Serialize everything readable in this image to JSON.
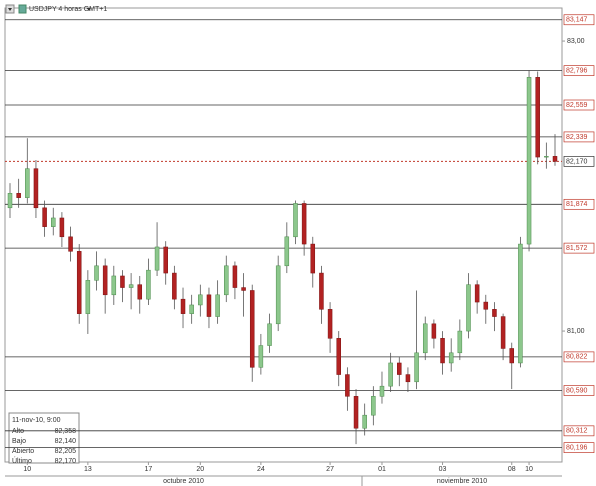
{
  "chart_data": {
    "type": "candlestick",
    "symbol_label": "USDJPY 4 horas GMT+1",
    "categories": [
      null,
      null,
      "10",
      null,
      null,
      null,
      null,
      null,
      null,
      "13",
      null,
      null,
      null,
      null,
      null,
      null,
      "17",
      null,
      null,
      null,
      null,
      null,
      "20",
      null,
      null,
      null,
      null,
      null,
      null,
      "24",
      null,
      null,
      null,
      null,
      null,
      null,
      null,
      "27",
      null,
      null,
      null,
      null,
      null,
      "01",
      null,
      null,
      null,
      null,
      null,
      null,
      "03",
      null,
      null,
      null,
      null,
      null,
      null,
      null,
      "08",
      null,
      "10",
      null,
      null,
      null
    ],
    "months": [
      "octubre 2010",
      "noviembre 2010"
    ],
    "open": [
      81.85,
      81.95,
      81.92,
      82.12,
      81.85,
      81.72,
      81.78,
      81.65,
      81.55,
      81.12,
      81.35,
      81.45,
      81.25,
      81.38,
      81.3,
      81.32,
      81.22,
      81.42,
      81.58,
      81.4,
      81.22,
      81.12,
      81.18,
      81.25,
      81.1,
      81.25,
      81.45,
      81.3,
      81.28,
      80.75,
      80.9,
      81.05,
      81.45,
      81.65,
      81.88,
      81.6,
      81.4,
      81.15,
      80.95,
      80.7,
      80.55,
      80.33,
      80.42,
      80.55,
      80.62,
      80.78,
      80.7,
      80.65,
      80.85,
      81.05,
      80.95,
      80.78,
      80.85,
      81.0,
      81.32,
      81.2,
      81.15,
      81.1,
      80.88,
      80.78,
      81.6,
      82.75,
      82.2,
      82.205
    ],
    "high": [
      82.02,
      82.05,
      82.33,
      82.18,
      81.9,
      81.85,
      81.82,
      81.72,
      81.6,
      81.42,
      81.55,
      81.5,
      81.45,
      81.42,
      81.4,
      81.38,
      81.5,
      81.75,
      81.62,
      81.45,
      81.3,
      81.25,
      81.32,
      81.3,
      81.35,
      81.52,
      81.48,
      81.4,
      81.32,
      80.98,
      81.12,
      81.52,
      81.75,
      81.9,
      81.9,
      81.65,
      81.45,
      81.2,
      81.0,
      80.75,
      80.6,
      80.5,
      80.62,
      80.72,
      80.85,
      80.82,
      80.75,
      81.28,
      81.1,
      81.08,
      81.0,
      80.95,
      81.08,
      81.4,
      81.35,
      81.25,
      81.2,
      81.12,
      80.92,
      81.65,
      82.8,
      82.79,
      82.3,
      82.358
    ],
    "low": [
      81.78,
      81.85,
      81.88,
      81.78,
      81.65,
      81.66,
      81.58,
      81.48,
      81.05,
      80.98,
      81.28,
      81.12,
      81.18,
      81.2,
      81.15,
      81.12,
      81.18,
      81.38,
      81.32,
      81.15,
      81.02,
      81.05,
      81.1,
      81.02,
      81.05,
      81.2,
      81.22,
      81.1,
      80.65,
      80.7,
      80.85,
      81.0,
      81.4,
      81.6,
      81.52,
      81.3,
      81.05,
      80.85,
      80.62,
      80.45,
      80.22,
      80.28,
      80.35,
      80.5,
      80.58,
      80.62,
      80.58,
      80.6,
      80.8,
      80.88,
      80.7,
      80.72,
      80.8,
      80.95,
      81.12,
      81.05,
      81.0,
      80.8,
      80.6,
      80.75,
      81.55,
      82.15,
      82.12,
      82.14
    ],
    "close": [
      81.95,
      81.92,
      82.12,
      81.85,
      81.72,
      81.78,
      81.65,
      81.55,
      81.12,
      81.35,
      81.45,
      81.25,
      81.38,
      81.3,
      81.32,
      81.22,
      81.42,
      81.58,
      81.4,
      81.22,
      81.12,
      81.18,
      81.25,
      81.1,
      81.25,
      81.45,
      81.3,
      81.28,
      80.75,
      80.9,
      81.05,
      81.45,
      81.65,
      81.88,
      81.6,
      81.4,
      81.15,
      80.95,
      80.7,
      80.55,
      80.33,
      80.42,
      80.55,
      80.62,
      80.78,
      80.7,
      80.65,
      80.85,
      81.05,
      80.95,
      80.78,
      80.85,
      81.0,
      81.32,
      81.2,
      81.15,
      81.1,
      80.88,
      80.78,
      81.6,
      82.75,
      82.2,
      82.205,
      82.17
    ],
    "up_color": "#8cc78c",
    "down_color": "#b22222",
    "ylim": [
      80.097,
      83.228
    ],
    "yticks": [
      {
        "value": 83.0,
        "label": "83,00"
      },
      {
        "value": 81.0,
        "label": "81,00"
      }
    ],
    "levels": [
      {
        "value": 83.147,
        "label": "83,147"
      },
      {
        "value": 82.796,
        "label": "82,796"
      },
      {
        "value": 82.559,
        "label": "82,559"
      },
      {
        "value": 82.339,
        "label": "82,339"
      },
      {
        "value": 81.874,
        "label": "81,874"
      },
      {
        "value": 81.572,
        "label": "81,572"
      },
      {
        "value": 80.822,
        "label": "80,822"
      },
      {
        "value": 80.59,
        "label": "80,590"
      },
      {
        "value": 80.312,
        "label": "80,312"
      },
      {
        "value": 80.196,
        "label": "80,196"
      }
    ],
    "last": {
      "value": 82.17,
      "label": "82,170"
    },
    "info": {
      "date": "11-nov-10, 9:00",
      "rows": [
        [
          "Alto",
          "82,358"
        ],
        [
          "Bajo",
          "82,140"
        ],
        [
          "Abierto",
          "82,205"
        ],
        [
          "Último",
          "82,170"
        ]
      ]
    }
  }
}
